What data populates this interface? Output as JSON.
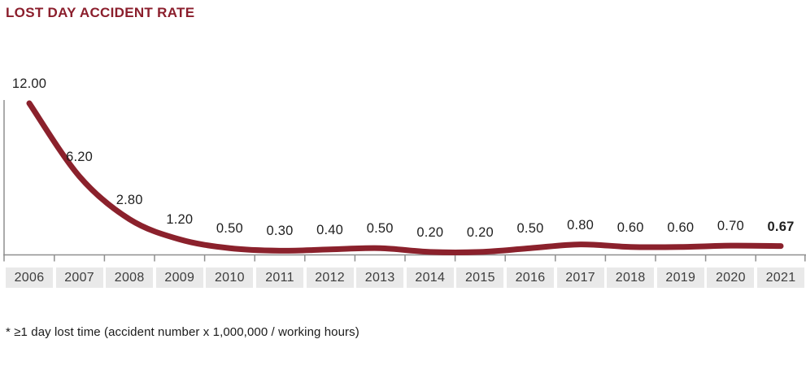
{
  "chart_data": {
    "type": "line",
    "title": "LOST DAY ACCIDENT RATE",
    "footnote": "* ≥1 day lost time (accident number x 1,000,000 / working hours)",
    "categories": [
      "2006",
      "2007",
      "2008",
      "2009",
      "2010",
      "2011",
      "2012",
      "2013",
      "2014",
      "2015",
      "2016",
      "2017",
      "2018",
      "2019",
      "2020",
      "2021"
    ],
    "values": [
      12.0,
      6.2,
      2.8,
      1.2,
      0.5,
      0.3,
      0.4,
      0.5,
      0.2,
      0.2,
      0.5,
      0.8,
      0.6,
      0.6,
      0.7,
      0.67
    ],
    "value_labels": [
      "12.00",
      "6.20",
      "2.80",
      "1.20",
      "0.50",
      "0.30",
      "0.40",
      "0.50",
      "0.20",
      "0.20",
      "0.50",
      "0.80",
      "0.60",
      "0.60",
      "0.70",
      "0.67"
    ],
    "emphasized_label_index": 15,
    "xlabel": "",
    "ylabel": "",
    "ylim": [
      0,
      12
    ],
    "grid": false,
    "legend_position": "none",
    "colors": {
      "line": "#8B212C",
      "title": "#8B1E2C",
      "axis": "#8f8f8f",
      "value_label": "#1f1f1f",
      "year_label_bg": "#e9e9e9",
      "year_label_text": "#3d3d3d"
    }
  }
}
